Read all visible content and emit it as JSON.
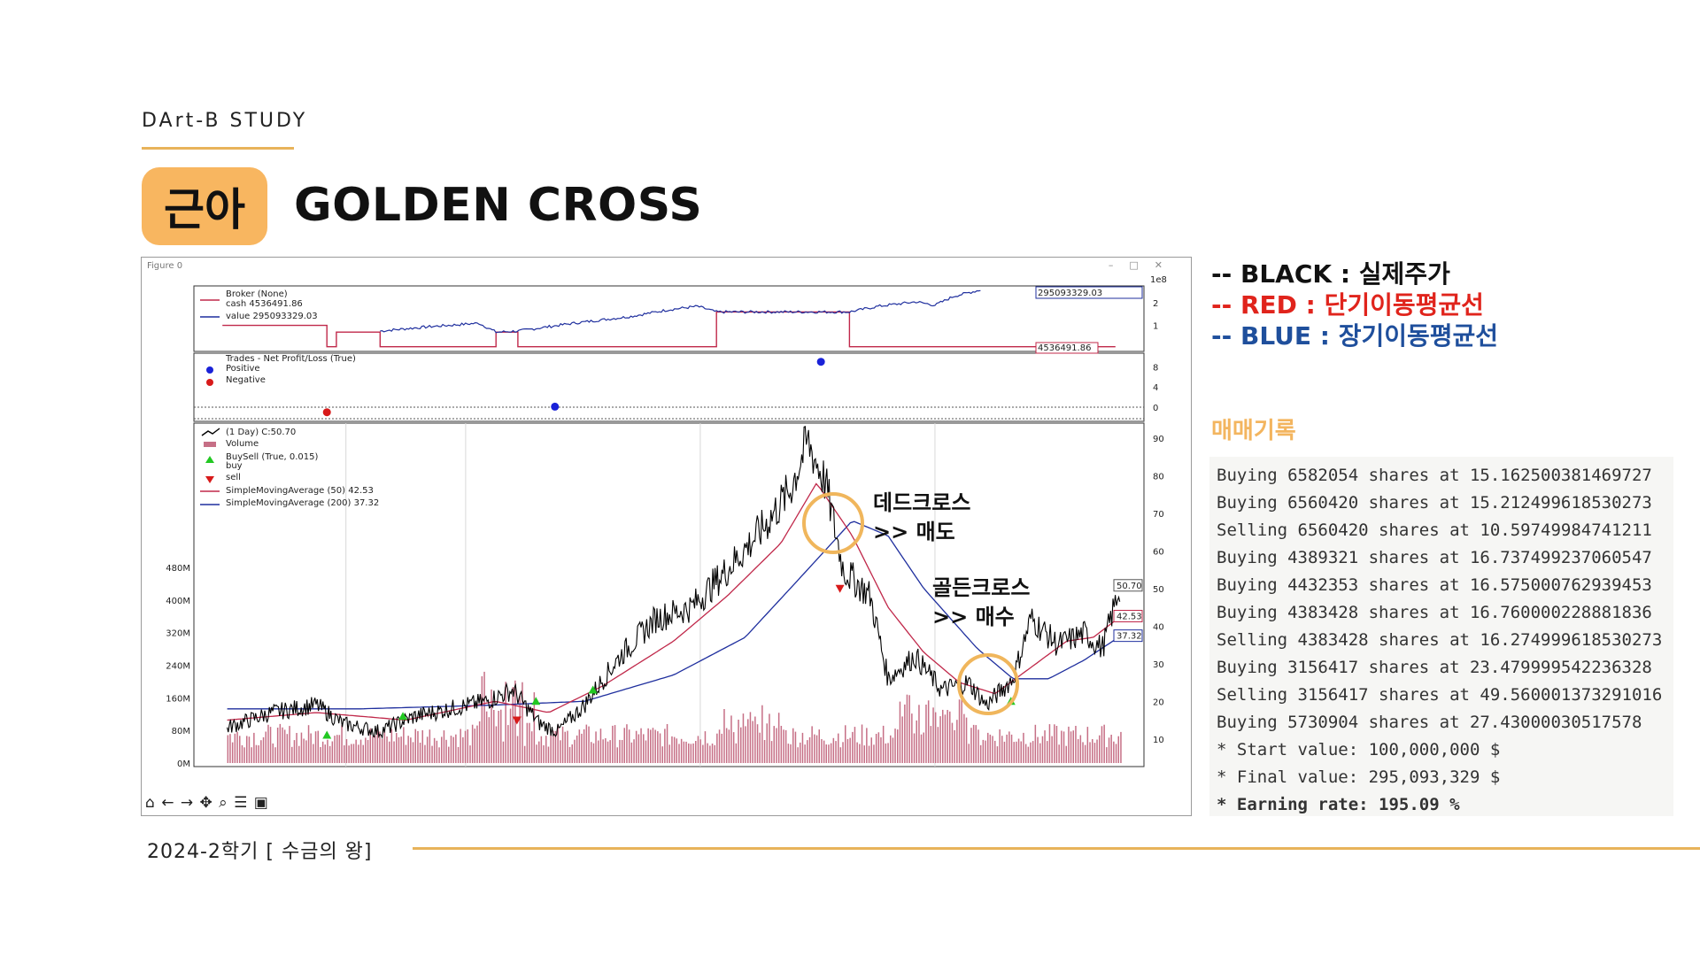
{
  "header": {
    "study_label": "DArt-B STUDY",
    "badge": "근아",
    "title": "GOLDEN CROSS"
  },
  "figure_window": {
    "title": "Figure 0",
    "controls": [
      "–",
      "□",
      "✕"
    ],
    "toolbar_icons": [
      "home-icon",
      "back-icon",
      "forward-icon",
      "pan-icon",
      "zoom-icon",
      "configure-icon",
      "save-icon"
    ]
  },
  "chart_data": [
    {
      "type": "line",
      "panel": "broker",
      "legend": [
        "Broker (None)",
        "cash 4536491.86",
        "value 295093329.03"
      ],
      "exponent_label": "1e8",
      "y_ticks": [
        1,
        2
      ],
      "value_label": "295093329.03",
      "cash_label": "4536491.86",
      "colors": {
        "cash": "#c0284a",
        "value": "#1f2f9e"
      }
    },
    {
      "type": "scatter",
      "panel": "trades",
      "legend": [
        "Trades - Net Profit/Loss (True)",
        "Positive",
        "Negative"
      ],
      "y_ticks": [
        0,
        4,
        8
      ],
      "points": [
        {
          "x": 0.14,
          "y": -1,
          "sign": "negative"
        },
        {
          "x": 0.38,
          "y": 0.1,
          "sign": "positive"
        },
        {
          "x": 0.66,
          "y": 9,
          "sign": "positive"
        }
      ],
      "colors": {
        "positive": "#1a22d8",
        "negative": "#d81a1a"
      }
    },
    {
      "type": "line",
      "panel": "price",
      "legend": [
        "(1 Day) C:50.70",
        "Volume",
        "BuySell (True, 0.015)",
        "buy",
        "sell",
        "SimpleMovingAverage (50) 42.53",
        "SimpleMovingAverage (200) 37.32"
      ],
      "y_ticks": [
        10,
        20,
        30,
        40,
        50,
        60,
        70,
        80,
        90
      ],
      "volume_ticks": [
        "0M",
        "80M",
        "160M",
        "240M",
        "320M",
        "400M",
        "480M"
      ],
      "last_close": "50.70",
      "last_sma50": "42.53",
      "last_sma200": "37.32",
      "close_key": [
        [
          0,
          13
        ],
        [
          0.05,
          17
        ],
        [
          0.1,
          19
        ],
        [
          0.13,
          14
        ],
        [
          0.17,
          12
        ],
        [
          0.21,
          16
        ],
        [
          0.25,
          18
        ],
        [
          0.29,
          20
        ],
        [
          0.32,
          23
        ],
        [
          0.35,
          14
        ],
        [
          0.37,
          12
        ],
        [
          0.4,
          19
        ],
        [
          0.44,
          32
        ],
        [
          0.48,
          42
        ],
        [
          0.52,
          45
        ],
        [
          0.56,
          55
        ],
        [
          0.6,
          66
        ],
        [
          0.63,
          76
        ],
        [
          0.65,
          89
        ],
        [
          0.67,
          78
        ],
        [
          0.69,
          55
        ],
        [
          0.72,
          48
        ],
        [
          0.74,
          26
        ],
        [
          0.77,
          32
        ],
        [
          0.8,
          23
        ],
        [
          0.83,
          25
        ],
        [
          0.85,
          19
        ],
        [
          0.88,
          26
        ],
        [
          0.9,
          42
        ],
        [
          0.93,
          35
        ],
        [
          0.96,
          38
        ],
        [
          0.98,
          34
        ],
        [
          1,
          50.7
        ]
      ],
      "sma50_key": [
        [
          0,
          15
        ],
        [
          0.1,
          17
        ],
        [
          0.2,
          15
        ],
        [
          0.3,
          20
        ],
        [
          0.36,
          17
        ],
        [
          0.42,
          24
        ],
        [
          0.5,
          36
        ],
        [
          0.56,
          48
        ],
        [
          0.62,
          62
        ],
        [
          0.66,
          78
        ],
        [
          0.7,
          64
        ],
        [
          0.74,
          45
        ],
        [
          0.78,
          33
        ],
        [
          0.82,
          25
        ],
        [
          0.86,
          22
        ],
        [
          0.9,
          29
        ],
        [
          0.94,
          36
        ],
        [
          0.97,
          37
        ],
        [
          1,
          42.5
        ]
      ],
      "sma200_key": [
        [
          0,
          18
        ],
        [
          0.15,
          18
        ],
        [
          0.3,
          19
        ],
        [
          0.4,
          20
        ],
        [
          0.5,
          27
        ],
        [
          0.58,
          37
        ],
        [
          0.65,
          55
        ],
        [
          0.7,
          68
        ],
        [
          0.74,
          64
        ],
        [
          0.78,
          50
        ],
        [
          0.84,
          34
        ],
        [
          0.88,
          26
        ],
        [
          0.92,
          26
        ],
        [
          0.96,
          31
        ],
        [
          1,
          37.3
        ]
      ],
      "colors": {
        "close": "#000000",
        "sma50": "#c0284a",
        "sma200": "#1f2f9e",
        "volume": "#c66f86",
        "buy": "#22c822",
        "sell": "#d81a1a"
      }
    }
  ],
  "annotations": {
    "dead_cross": {
      "line1": "데드크로스",
      "line2": ">> 매도"
    },
    "golden_cross": {
      "line1": "골든크로스",
      "line2": ">> 매수"
    },
    "circle_color": "#f0b65c"
  },
  "legend_text": {
    "black": "-- BLACK : 실제주가",
    "red": "-- RED : 단기이동평균선",
    "blue": "-- BLUE : 장기이동평균선"
  },
  "trade_log": {
    "title": "매매기록",
    "lines": [
      "Buying 6582054 shares at 15.162500381469727",
      "Buying 6560420 shares at 15.212499618530273",
      "Selling 6560420 shares at 10.59749984741211",
      "Buying 4389321 shares at 16.737499237060547",
      "Buying 4432353 shares at 16.575000762939453",
      "Buying 4383428 shares at 16.760000228881836",
      "Selling 4383428 shares at 16.274999618530273",
      "Buying 3156417 shares at 23.479999542236328",
      "Selling 3156417 shares at 49.560001373291016",
      "Buying 5730904 shares at 27.43000030517578",
      "* Start value: 100,000,000 $",
      "* Final value: 295,093,329 $",
      "* Earning rate: 195.09 %"
    ]
  },
  "footer": {
    "text": "2024-2학기 [ 수금의 왕]"
  }
}
